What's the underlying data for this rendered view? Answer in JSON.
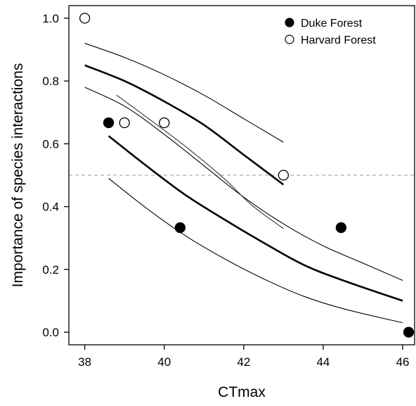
{
  "chart_data": {
    "type": "scatter",
    "xlabel": "CTmax",
    "ylabel": "Importance of species interactions",
    "xlim": [
      37.6,
      46.3
    ],
    "ylim": [
      -0.04,
      1.04
    ],
    "xticks": [
      38,
      40,
      42,
      44,
      46
    ],
    "xtick_labels": [
      "38",
      "40",
      "42",
      "44",
      "46"
    ],
    "yticks": [
      0.0,
      0.2,
      0.4,
      0.6,
      0.8,
      1.0
    ],
    "ytick_labels": [
      "0.0",
      "0.2",
      "0.4",
      "0.6",
      "0.8",
      "1.0"
    ],
    "grid": false,
    "legend_position": "top-right",
    "reference_line": {
      "y": 0.5,
      "style": "dashed",
      "color": "#9a9a9a"
    },
    "series": [
      {
        "name": "Duke Forest",
        "marker": "filled-circle",
        "color": "#000000",
        "points": [
          {
            "x": 38.6,
            "y": 0.667
          },
          {
            "x": 40.4,
            "y": 0.333
          },
          {
            "x": 44.45,
            "y": 0.333
          },
          {
            "x": 46.15,
            "y": 0.0
          }
        ]
      },
      {
        "name": "Harvard Forest",
        "marker": "open-circle",
        "color": "#000000",
        "points": [
          {
            "x": 38.0,
            "y": 1.0
          },
          {
            "x": 39.0,
            "y": 0.667
          },
          {
            "x": 40.0,
            "y": 0.667
          },
          {
            "x": 43.0,
            "y": 0.5
          }
        ]
      }
    ],
    "fits": [
      {
        "group": "Duke Forest",
        "role": "fit",
        "points": [
          [
            38.6,
            0.625
          ],
          [
            39.5,
            0.535
          ],
          [
            40.5,
            0.44
          ],
          [
            41.5,
            0.36
          ],
          [
            42.5,
            0.285
          ],
          [
            43.5,
            0.215
          ],
          [
            44.5,
            0.165
          ],
          [
            46.0,
            0.1
          ]
        ]
      },
      {
        "group": "Duke Forest",
        "role": "upper-ci",
        "points": [
          [
            38.0,
            0.78
          ],
          [
            39.0,
            0.72
          ],
          [
            40.0,
            0.63
          ],
          [
            41.0,
            0.53
          ],
          [
            42.0,
            0.43
          ],
          [
            43.0,
            0.345
          ],
          [
            44.0,
            0.275
          ],
          [
            45.0,
            0.22
          ],
          [
            46.0,
            0.165
          ]
        ]
      },
      {
        "group": "Duke Forest",
        "role": "lower-ci",
        "points": [
          [
            38.6,
            0.49
          ],
          [
            39.5,
            0.4
          ],
          [
            40.5,
            0.31
          ],
          [
            41.5,
            0.235
          ],
          [
            42.5,
            0.17
          ],
          [
            43.5,
            0.115
          ],
          [
            44.5,
            0.075
          ],
          [
            46.0,
            0.03
          ]
        ]
      },
      {
        "group": "Harvard Forest",
        "role": "fit",
        "points": [
          [
            38.0,
            0.85
          ],
          [
            39.0,
            0.8
          ],
          [
            40.0,
            0.735
          ],
          [
            41.0,
            0.66
          ],
          [
            42.0,
            0.565
          ],
          [
            43.0,
            0.47
          ]
        ]
      },
      {
        "group": "Harvard Forest",
        "role": "upper-ci",
        "points": [
          [
            38.0,
            0.92
          ],
          [
            39.0,
            0.875
          ],
          [
            40.0,
            0.82
          ],
          [
            41.0,
            0.755
          ],
          [
            42.0,
            0.68
          ],
          [
            43.0,
            0.605
          ]
        ]
      },
      {
        "group": "Harvard Forest",
        "role": "lower-ci",
        "points": [
          [
            38.8,
            0.755
          ],
          [
            39.5,
            0.69
          ],
          [
            40.5,
            0.595
          ],
          [
            41.5,
            0.49
          ],
          [
            42.2,
            0.405
          ],
          [
            43.0,
            0.33
          ]
        ]
      }
    ]
  }
}
